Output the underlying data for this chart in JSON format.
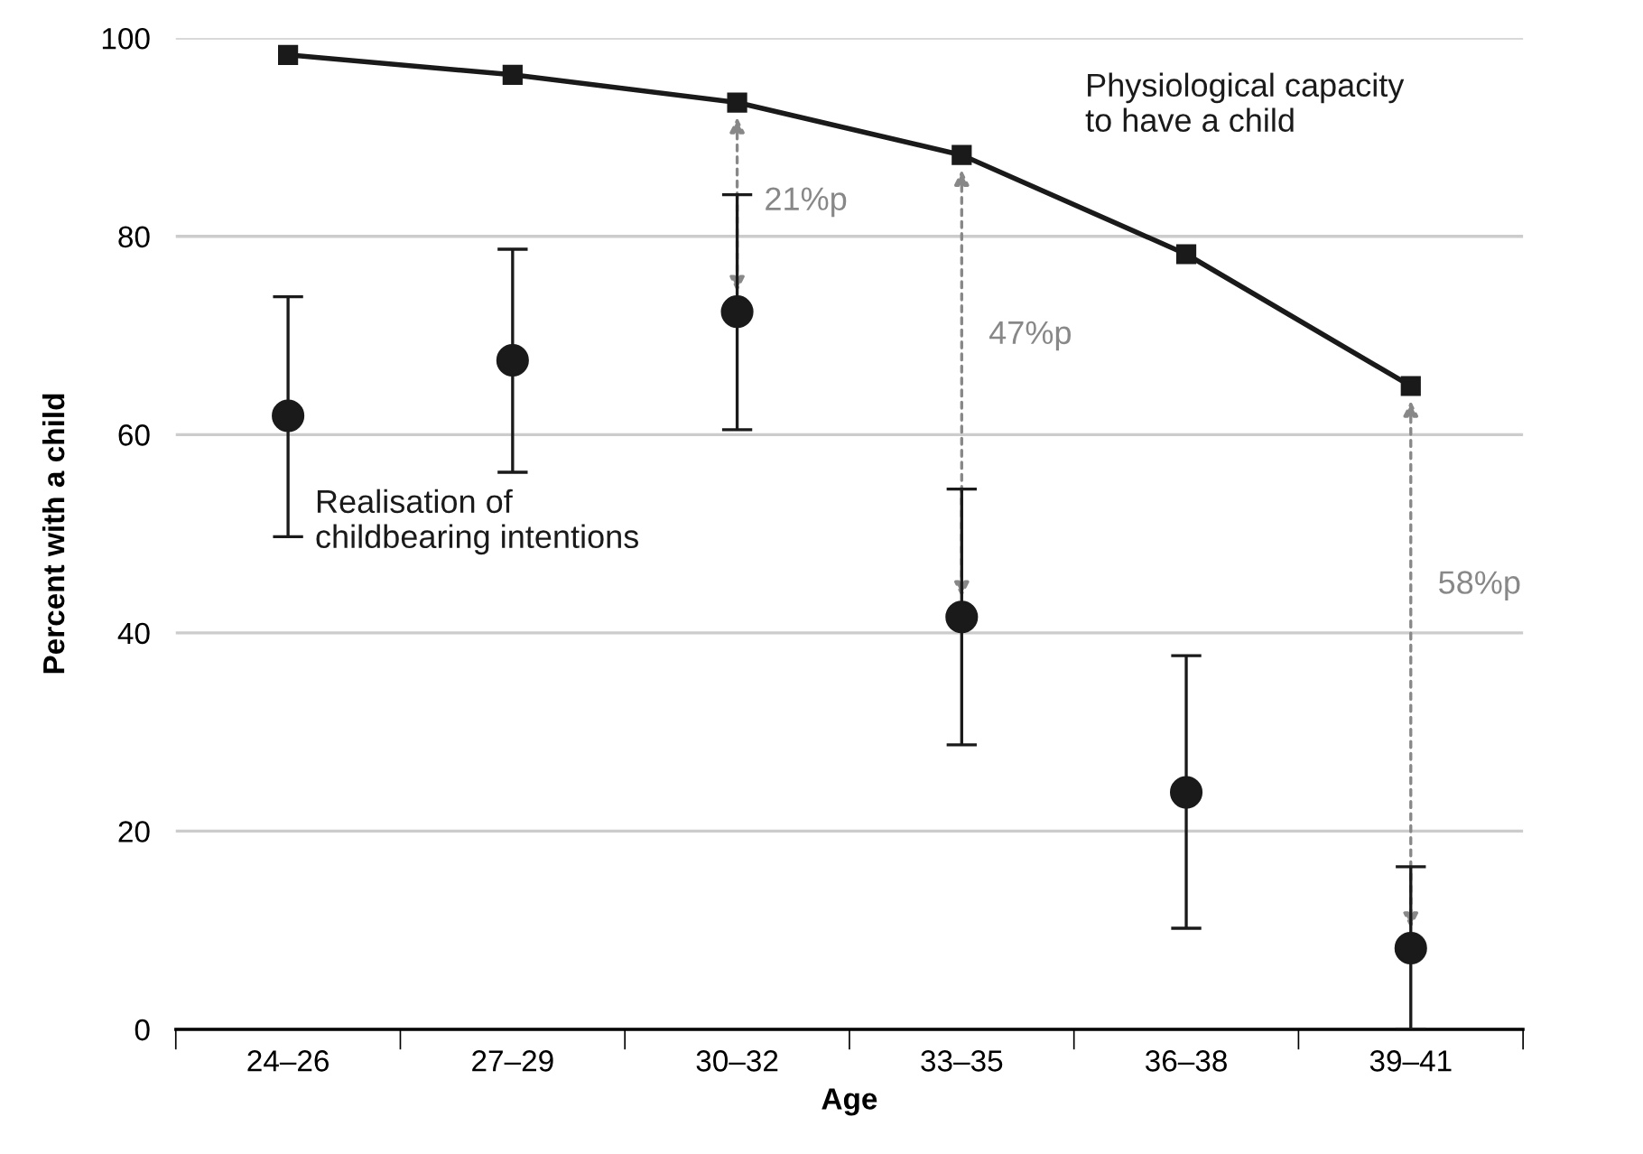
{
  "chart_data": {
    "type": "scatter",
    "xlabel": "Age",
    "ylabel": "Percent with a child",
    "categories": [
      "24–26",
      "27–29",
      "30–32",
      "33–35",
      "36–38",
      "39–41"
    ],
    "series": [
      {
        "name": "Physiological capacity\nto have a child",
        "type": "line",
        "color": "#1a1a1a",
        "marker": "square",
        "values": [
          98.3,
          96.3,
          93.5,
          88.2,
          78.2,
          64.9
        ]
      },
      {
        "name": "Realisation of\nchildbearing intentions",
        "color": "#1a1a1a",
        "marker": "circle",
        "values": [
          61.9,
          67.5,
          72.4,
          41.6,
          23.9,
          8.2
        ],
        "errors": [
          [
            49.7,
            73.9
          ],
          [
            56.2,
            78.7
          ],
          [
            60.5,
            84.2
          ],
          [
            28.7,
            54.5
          ],
          [
            10.2,
            37.7
          ],
          [
            0,
            16.4
          ]
        ]
      }
    ],
    "ylim": [
      0,
      100
    ],
    "yticks": [
      0,
      20,
      40,
      60,
      80,
      100
    ],
    "grid": "y",
    "legend": false,
    "annotations": [
      "21%p",
      "47%p",
      "58%p"
    ]
  }
}
